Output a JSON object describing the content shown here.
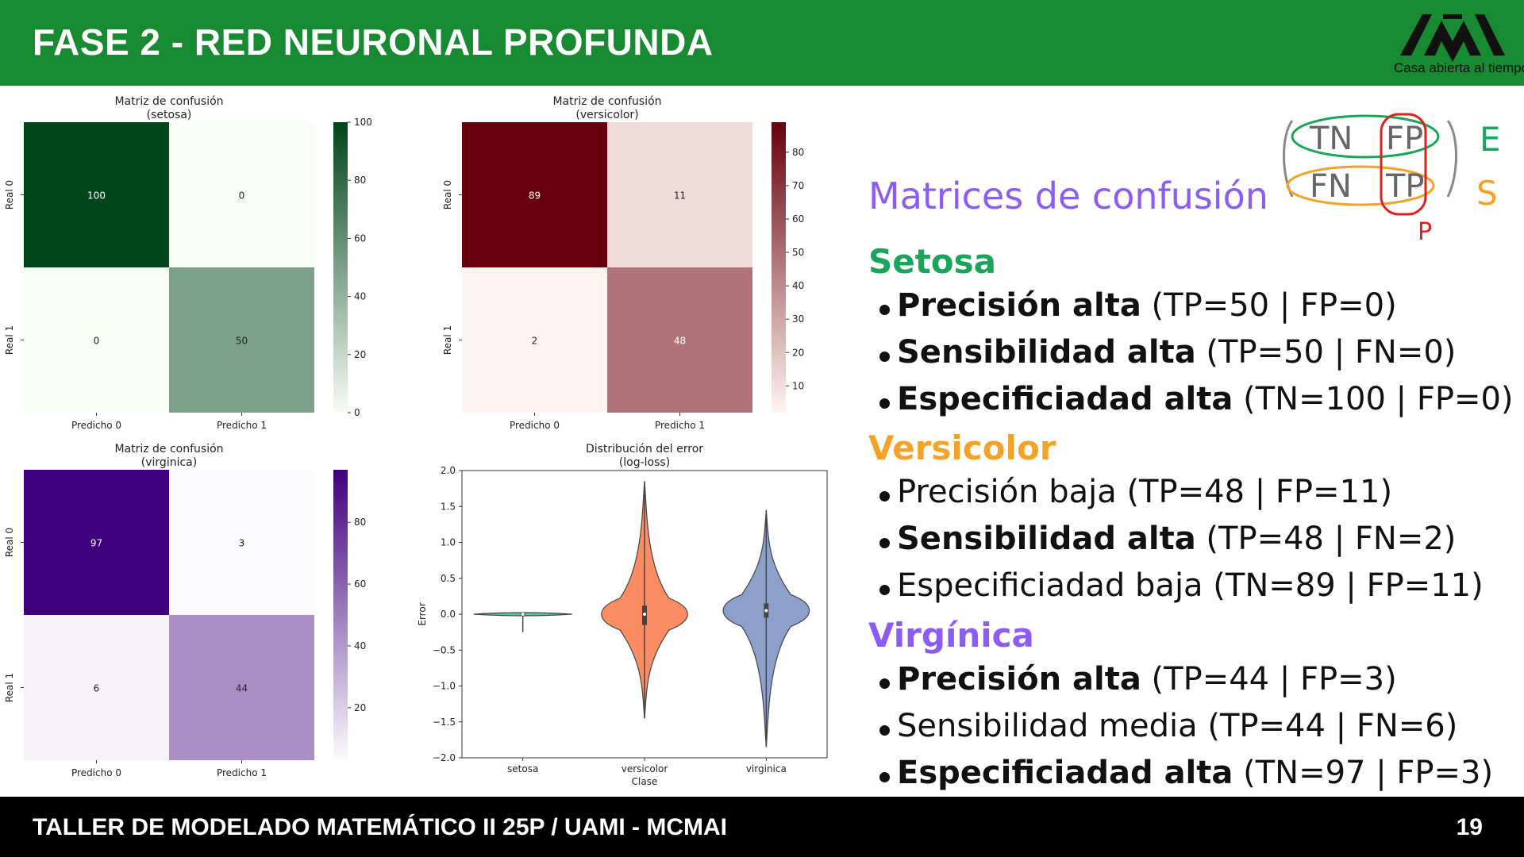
{
  "slide": {
    "title": "FASE 2 - RED NEURONAL PROFUNDA",
    "footer": "TALLER DE MODELADO MATEMÁTICO II 25P / UAMI - MCMAI",
    "page_number": "19",
    "logo_text": "Casa abierta al tiempo"
  },
  "panel": {
    "heading": "Matrices de confusión",
    "sections": [
      {
        "name": "Setosa",
        "items": [
          {
            "label": "Precisión alta",
            "detail": "(TP=50 | FP=0)",
            "bold": true
          },
          {
            "label": "Sensibilidad alta",
            "detail": "(TP=50 | FN=0)",
            "bold": true
          },
          {
            "label": "Especificiadad alta",
            "detail": "(TN=100 | FP=0)",
            "bold": true
          }
        ]
      },
      {
        "name": "Versicolor",
        "items": [
          {
            "label": "Precisión baja",
            "detail": "(TP=48 | FP=11)",
            "bold": false
          },
          {
            "label": "Sensibilidad alta",
            "detail": "(TP=48 | FN=2)",
            "bold": true
          },
          {
            "label": "Especificiadad baja",
            "detail": "(TN=89 | FP=11)",
            "bold": false
          }
        ]
      },
      {
        "name": "Virgínica",
        "items": [
          {
            "label": "Precisión alta",
            "detail": "(TP=44 | FP=3)",
            "bold": true
          },
          {
            "label": "Sensibilidad media",
            "detail": "(TP=44 | FN=6)",
            "bold": false
          },
          {
            "label": "Especificiadad alta",
            "detail": "(TN=97 | FP=3)",
            "bold": true
          }
        ]
      }
    ],
    "sketch": {
      "cells": [
        "TN",
        "FP",
        "FN",
        "TP"
      ],
      "side_letters": [
        "E",
        "S",
        "P"
      ],
      "colors": {
        "green": "#1aa55a",
        "red": "#dd2222",
        "orange": "#f5a228",
        "gray": "#888888"
      }
    }
  },
  "chart_data": [
    {
      "type": "heatmap",
      "title": "Matriz de confusión\n(setosa)",
      "title_lines": [
        "Matriz de confusión",
        "(setosa)"
      ],
      "rows": [
        "Real 0",
        "Real 1"
      ],
      "cols": [
        "Predicho 0",
        "Predicho 1"
      ],
      "values": [
        [
          100,
          0
        ],
        [
          0,
          50
        ]
      ],
      "colormap": "Greens",
      "colorbar_ticks": [
        "0",
        "20",
        "40",
        "60",
        "80",
        "100"
      ],
      "colorbar_range": [
        0,
        100
      ]
    },
    {
      "type": "heatmap",
      "title": "Matriz de confusión\n(versicolor)",
      "title_lines": [
        "Matriz de confusión",
        "(versicolor)"
      ],
      "rows": [
        "Real 0",
        "Real 1"
      ],
      "cols": [
        "Predicho 0",
        "Predicho 1"
      ],
      "values": [
        [
          89,
          11
        ],
        [
          2,
          48
        ]
      ],
      "colormap": "Reds",
      "colorbar_ticks": [
        "10",
        "20",
        "30",
        "40",
        "50",
        "60",
        "70",
        "80"
      ],
      "colorbar_range": [
        2,
        89
      ]
    },
    {
      "type": "heatmap",
      "title": "Matriz de confusión\n(virginica)",
      "title_lines": [
        "Matriz de confusión",
        "(virginica)"
      ],
      "rows": [
        "Real 0",
        "Real 1"
      ],
      "cols": [
        "Predicho 0",
        "Predicho 1"
      ],
      "values": [
        [
          97,
          3
        ],
        [
          6,
          44
        ]
      ],
      "colormap": "Purples",
      "colorbar_ticks": [
        "20",
        "40",
        "60",
        "80"
      ],
      "colorbar_range": [
        3,
        97
      ]
    },
    {
      "type": "violin",
      "title": "Distribución del error\n(log-loss)",
      "title_lines": [
        "Distribución del error",
        "(log-loss)"
      ],
      "xlabel": "Clase",
      "ylabel": "Error",
      "categories": [
        "setosa",
        "versicolor",
        "virginica"
      ],
      "ylim": [
        -2.0,
        2.0
      ],
      "yticks": [
        "−2.0",
        "−1.5",
        "−1.0",
        "−0.5",
        "0.0",
        "0.5",
        "1.0",
        "1.5",
        "2.0"
      ],
      "series": [
        {
          "category": "setosa",
          "min": -0.25,
          "max": 0.02,
          "median": 0.0,
          "q1": -0.01,
          "q3": 0.01,
          "color": "#66c2a5"
        },
        {
          "category": "versicolor",
          "min": -1.45,
          "max": 1.85,
          "median": 0.0,
          "q1": -0.15,
          "q3": 0.12,
          "color": "#fc8d62"
        },
        {
          "category": "virginica",
          "min": -1.85,
          "max": 1.45,
          "median": 0.05,
          "q1": -0.05,
          "q3": 0.15,
          "color": "#8da0cb"
        }
      ]
    }
  ]
}
